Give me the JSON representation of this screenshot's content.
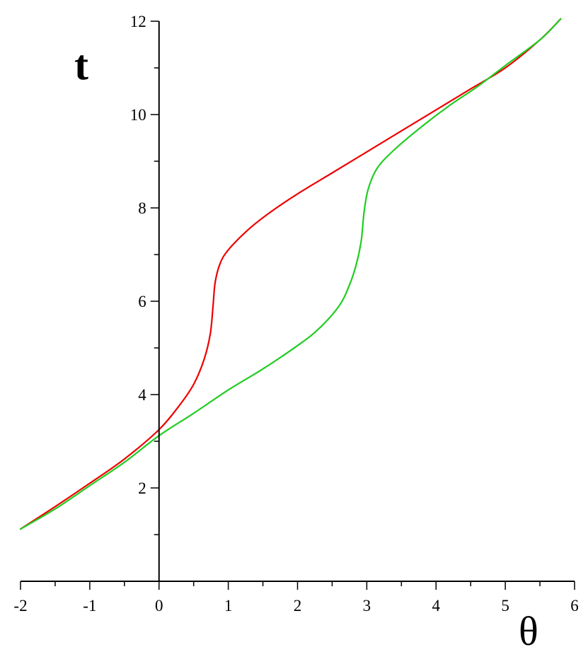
{
  "chart_data": {
    "type": "line",
    "xlabel": "θ",
    "ylabel": "t",
    "xlim": [
      -2,
      6
    ],
    "ylim": [
      0,
      12
    ],
    "x_ticks": [
      -2,
      -1,
      0,
      1,
      2,
      3,
      4,
      5,
      6
    ],
    "x_tick_labels": [
      "-2",
      "-1",
      "0",
      "1",
      "2",
      "3",
      "4",
      "5",
      "6"
    ],
    "y_ticks": [
      2,
      4,
      6,
      8,
      10,
      12
    ],
    "y_tick_labels": [
      "2",
      "4",
      "6",
      "8",
      "10",
      "12"
    ],
    "grid": false,
    "series": [
      {
        "color": "#ee0000",
        "points": [
          [
            -2.0,
            1.12
          ],
          [
            -1.5,
            1.6
          ],
          [
            -1.0,
            2.1
          ],
          [
            -0.5,
            2.62
          ],
          [
            0.0,
            3.25
          ],
          [
            0.3,
            3.78
          ],
          [
            0.5,
            4.22
          ],
          [
            0.65,
            4.75
          ],
          [
            0.74,
            5.3
          ],
          [
            0.78,
            5.9
          ],
          [
            0.81,
            6.4
          ],
          [
            0.88,
            6.8
          ],
          [
            1.0,
            7.1
          ],
          [
            1.3,
            7.55
          ],
          [
            1.6,
            7.9
          ],
          [
            2.0,
            8.3
          ],
          [
            2.5,
            8.75
          ],
          [
            3.0,
            9.2
          ],
          [
            3.5,
            9.65
          ],
          [
            4.0,
            10.1
          ],
          [
            4.5,
            10.55
          ],
          [
            5.0,
            11.0
          ],
          [
            5.5,
            11.6
          ],
          [
            5.8,
            12.05
          ]
        ]
      },
      {
        "color": "#22cc22",
        "points": [
          [
            -2.0,
            1.12
          ],
          [
            -1.5,
            1.55
          ],
          [
            -1.0,
            2.05
          ],
          [
            -0.5,
            2.55
          ],
          [
            0.0,
            3.12
          ],
          [
            0.5,
            3.6
          ],
          [
            1.0,
            4.1
          ],
          [
            1.5,
            4.55
          ],
          [
            2.0,
            5.05
          ],
          [
            2.3,
            5.4
          ],
          [
            2.6,
            5.9
          ],
          [
            2.75,
            6.35
          ],
          [
            2.85,
            6.8
          ],
          [
            2.92,
            7.3
          ],
          [
            2.96,
            7.9
          ],
          [
            3.02,
            8.4
          ],
          [
            3.15,
            8.85
          ],
          [
            3.4,
            9.25
          ],
          [
            3.8,
            9.75
          ],
          [
            4.2,
            10.2
          ],
          [
            4.6,
            10.6
          ],
          [
            5.0,
            11.05
          ],
          [
            5.5,
            11.6
          ],
          [
            5.8,
            12.05
          ]
        ]
      }
    ]
  }
}
